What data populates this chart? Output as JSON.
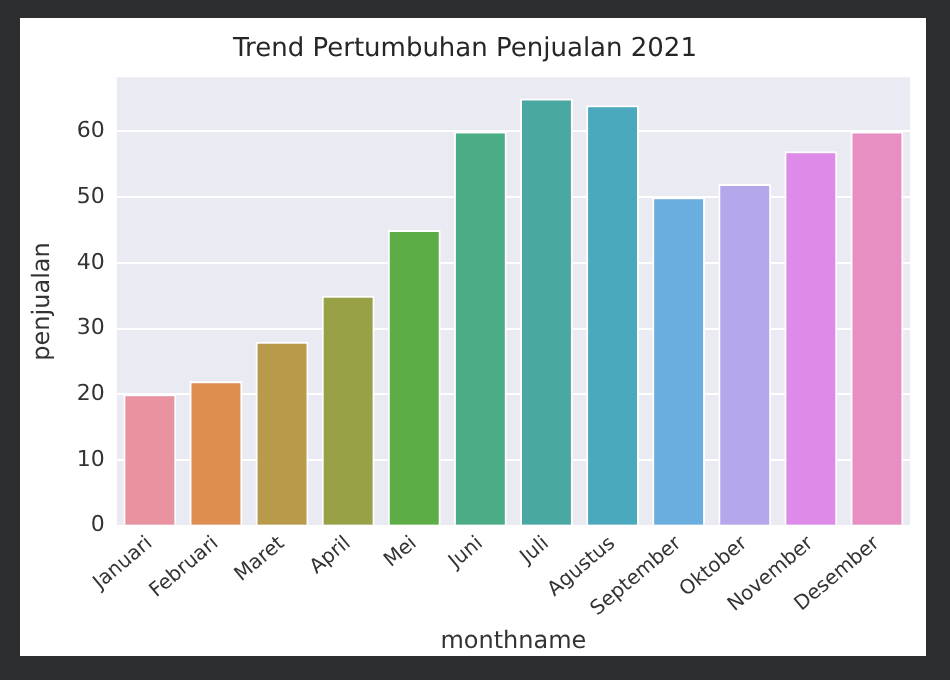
{
  "chart_data": {
    "type": "bar",
    "title": "Trend Pertumbuhan Penjualan 2021",
    "xlabel": "monthname",
    "ylabel": "penjualan",
    "categories": [
      "Januari",
      "Februari",
      "Maret",
      "April",
      "Mei",
      "Juni",
      "Juli",
      "Agustus",
      "September",
      "Oktober",
      "November",
      "Desember"
    ],
    "values": [
      20,
      22,
      28,
      35,
      45,
      60,
      65,
      64,
      50,
      52,
      57,
      60
    ],
    "colors": [
      "#e8939f",
      "#e08e50",
      "#b89a4a",
      "#98a146",
      "#5cad45",
      "#4aad86",
      "#4aa8a2",
      "#4aa9bc",
      "#6aaee0",
      "#b6a6ec",
      "#de8ae8",
      "#e78ec3"
    ],
    "ylim": [
      0,
      68.25
    ],
    "yticks": [
      0,
      10,
      20,
      30,
      40,
      50,
      60
    ],
    "grid": "y"
  }
}
